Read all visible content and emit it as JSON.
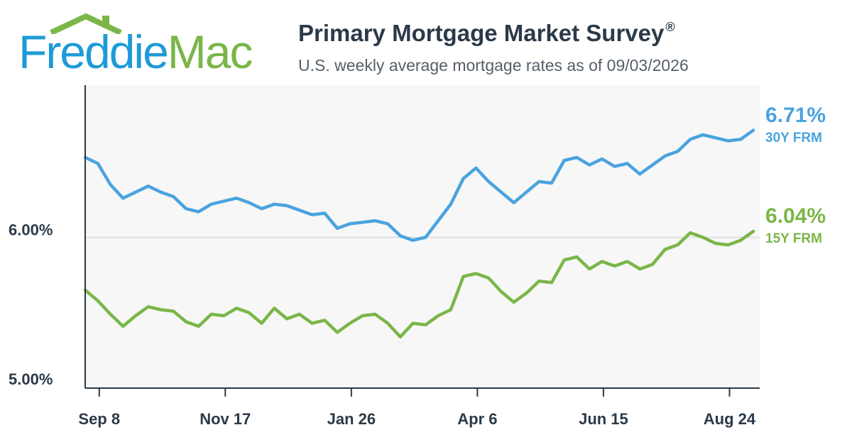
{
  "brand": {
    "word1": "Freddie",
    "word2": "Mac",
    "primary_color": "#1e9bd7",
    "secondary_color": "#7ab648",
    "icon": "house-roof-icon"
  },
  "header": {
    "title": "Primary Mortgage Market Survey",
    "title_mark": "®",
    "subtitle": "U.S. weekly average mortgage rates as of 09/03/2026"
  },
  "chart_data": {
    "type": "line",
    "y_tick_labels": [
      "6.00%",
      "5.00%"
    ],
    "y_ticks": [
      6.0,
      5.0
    ],
    "ylim": [
      5.0,
      7.0
    ],
    "grid": "horizontal at 6.00%",
    "x_tick_labels": [
      "Sep 8",
      "Nov 17",
      "Jan 26",
      "Apr 6",
      "Jun 15",
      "Aug 24"
    ],
    "x_tick_indices": [
      1,
      11,
      21,
      31,
      41,
      51
    ],
    "series": [
      {
        "name": "30Y FRM",
        "end_label": "6.71%",
        "color": "#4aa3df",
        "values": [
          6.53,
          6.49,
          6.35,
          6.26,
          6.3,
          6.34,
          6.3,
          6.27,
          6.19,
          6.17,
          6.22,
          6.24,
          6.26,
          6.23,
          6.19,
          6.22,
          6.21,
          6.18,
          6.15,
          6.16,
          6.06,
          6.09,
          6.1,
          6.11,
          6.09,
          6.01,
          5.98,
          6.0,
          6.11,
          6.22,
          6.39,
          6.46,
          6.37,
          6.3,
          6.23,
          6.3,
          6.37,
          6.36,
          6.51,
          6.53,
          6.48,
          6.52,
          6.47,
          6.49,
          6.42,
          6.48,
          6.54,
          6.57,
          6.65,
          6.68,
          6.66,
          6.64,
          6.65,
          6.71
        ]
      },
      {
        "name": "15Y FRM",
        "end_label": "6.04%",
        "color": "#7ab648",
        "values": [
          5.65,
          5.58,
          5.49,
          5.41,
          5.48,
          5.54,
          5.52,
          5.51,
          5.44,
          5.41,
          5.49,
          5.48,
          5.53,
          5.5,
          5.43,
          5.53,
          5.46,
          5.49,
          5.43,
          5.45,
          5.37,
          5.43,
          5.48,
          5.49,
          5.43,
          5.34,
          5.43,
          5.42,
          5.48,
          5.52,
          5.74,
          5.76,
          5.73,
          5.64,
          5.57,
          5.63,
          5.71,
          5.7,
          5.85,
          5.87,
          5.79,
          5.84,
          5.81,
          5.84,
          5.79,
          5.82,
          5.92,
          5.95,
          6.03,
          6.0,
          5.96,
          5.95,
          5.98,
          6.04
        ]
      }
    ]
  }
}
